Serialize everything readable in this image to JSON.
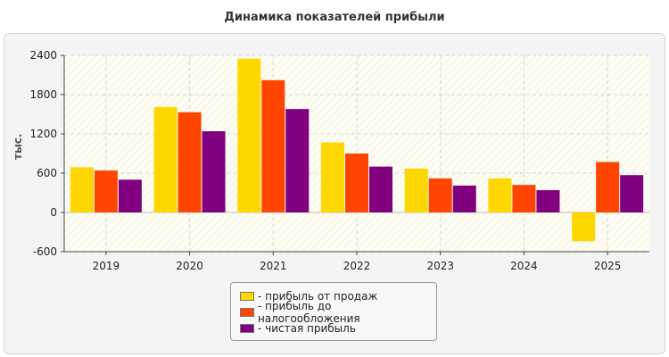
{
  "chart_data": {
    "type": "bar",
    "title": "Динамика показателей прибыли",
    "ylabel": "тыс.",
    "xlabel": "",
    "categories": [
      "2019",
      "2020",
      "2021",
      "2022",
      "2023",
      "2024",
      "2025"
    ],
    "ylim": [
      -600,
      2400
    ],
    "yticks": [
      -600,
      0,
      600,
      1200,
      1800,
      2400
    ],
    "grid": true,
    "legend_position": "bottom",
    "series": [
      {
        "name": "- прибыль от продаж",
        "color": "#ffd700",
        "values": [
          690,
          1610,
          2350,
          1070,
          670,
          520,
          -440
        ]
      },
      {
        "name": "- прибыль до налогообложения",
        "color": "#ff4500",
        "values": [
          640,
          1530,
          2020,
          900,
          520,
          420,
          770
        ]
      },
      {
        "name": "- чистая прибыль",
        "color": "#800080",
        "values": [
          500,
          1240,
          1580,
          700,
          410,
          340,
          570
        ]
      }
    ]
  }
}
